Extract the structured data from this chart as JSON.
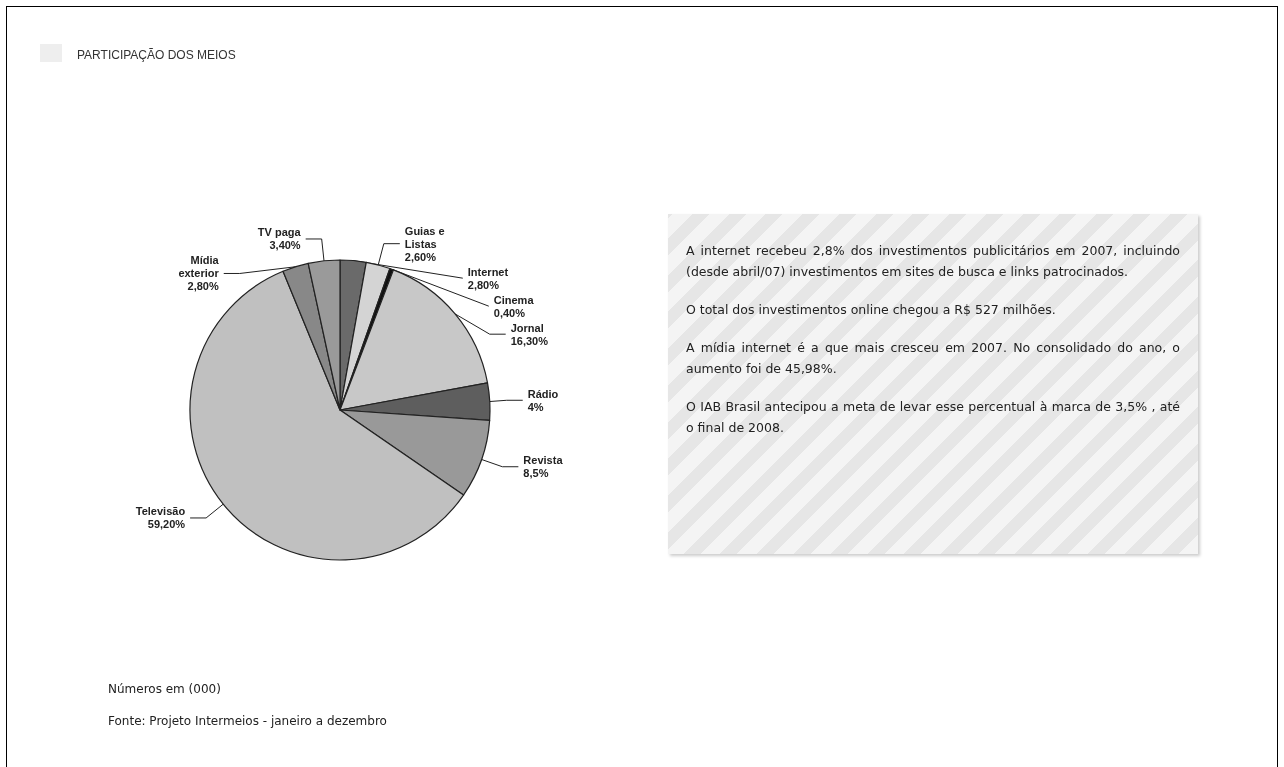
{
  "chart_data": {
    "type": "pie",
    "title": "PARTICIPAÇÃO DOS MEIOS",
    "categories": [
      "Internet",
      "Guias e\nListas",
      "Cinema",
      "Jornal",
      "Rádio",
      "Revista",
      "Televisão",
      "Mídia\nexterior",
      "TV paga"
    ],
    "values": [
      2.8,
      2.6,
      0.4,
      16.3,
      4,
      8.5,
      59.2,
      2.8,
      3.4
    ],
    "value_labels": [
      "2,80%",
      "2,60%",
      "0,40%",
      "16,30%",
      "4%",
      "8,5%",
      "59,20%",
      "2,80%",
      "3,40%"
    ],
    "colors": [
      "#6a6a6a",
      "#d4d4d4",
      "#111111",
      "#c8c8c8",
      "#5e5e5e",
      "#999999",
      "#c0c0c0",
      "#888888",
      "#9a9a9a"
    ],
    "legend": false,
    "annotations": [
      "A internet recebeu 2,8% dos investimentos publicitários em 2007, incluindo (desde abril/07) investimentos em sites de busca e links patrocinados.",
      "O total dos investimentos online chegou a R$ 527 milhões.",
      "A mídia internet é a que mais cresceu em 2007. No consolidado do ano, o aumento foi de 45,98%.",
      "O IAB Brasil antecipou a meta de levar esse percentual à marca de 3,5% , até o final de 2008.",
      "Números em (000)",
      "Fonte: Projeto Intermeios - janeiro a dezembro"
    ]
  }
}
